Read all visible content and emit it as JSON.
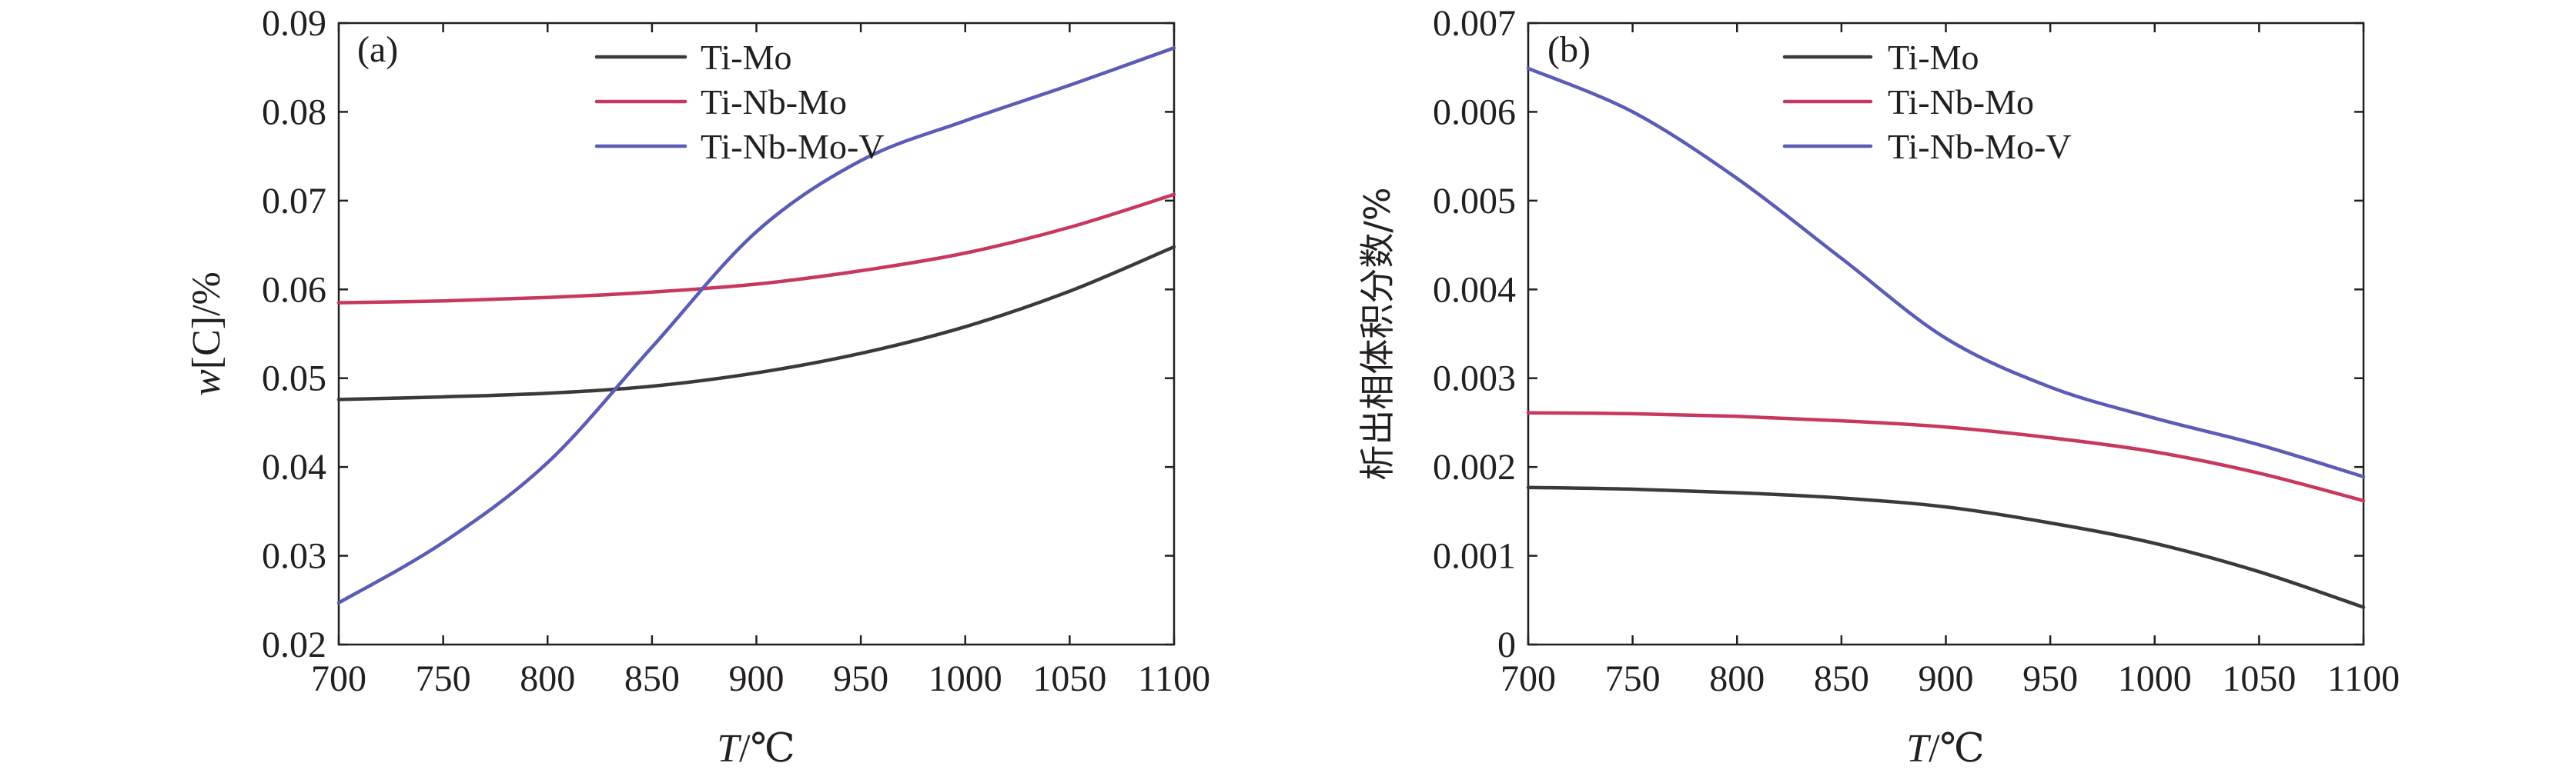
{
  "colors": {
    "Ti-Mo": "#3a3a3a",
    "Ti-Nb-Mo": "#c8385e",
    "Ti-Nb-Mo-V": "#5b5cb5",
    "axis": "#231f20"
  },
  "chart_data": [
    {
      "type": "line",
      "panel": "(a)",
      "xlabel_italic": "T",
      "xlabel_unit": "/℃",
      "ylabel_italic": "w",
      "ylabel_rest": "[C]/%",
      "xlim": [
        700,
        1100
      ],
      "ylim": [
        0.02,
        0.09
      ],
      "xticks": [
        700,
        750,
        800,
        850,
        900,
        950,
        1000,
        1050,
        1100
      ],
      "yticks": [
        0.02,
        0.03,
        0.04,
        0.05,
        0.06,
        0.07,
        0.08,
        0.09
      ],
      "ytick_labels": [
        "0.02",
        "0.03",
        "0.04",
        "0.05",
        "0.06",
        "0.07",
        "0.08",
        "0.09"
      ],
      "legend_position": "top-right",
      "grid": false,
      "x": [
        700,
        750,
        800,
        850,
        900,
        950,
        1000,
        1050,
        1100
      ],
      "series": [
        {
          "name": "Ti-Mo",
          "values": [
            0.0476,
            0.0479,
            0.0483,
            0.0491,
            0.0506,
            0.0528,
            0.0558,
            0.0598,
            0.0648
          ]
        },
        {
          "name": "Ti-Nb-Mo",
          "values": [
            0.0585,
            0.0587,
            0.0591,
            0.0597,
            0.0606,
            0.0621,
            0.0641,
            0.067,
            0.0707
          ]
        },
        {
          "name": "Ti-Nb-Mo-V",
          "values": [
            0.0247,
            0.0315,
            0.0405,
            0.0535,
            0.0665,
            0.0745,
            0.079,
            0.083,
            0.0872
          ]
        }
      ]
    },
    {
      "type": "line",
      "panel": "(b)",
      "xlabel_italic": "T",
      "xlabel_unit": "/℃",
      "ylabel": "析出相体积分数/%",
      "xlim": [
        700,
        1100
      ],
      "ylim": [
        0,
        0.007
      ],
      "xticks": [
        700,
        750,
        800,
        850,
        900,
        950,
        1000,
        1050,
        1100
      ],
      "yticks": [
        0,
        0.001,
        0.002,
        0.003,
        0.004,
        0.005,
        0.006,
        0.007
      ],
      "ytick_labels": [
        "0",
        "0.001",
        "0.002",
        "0.003",
        "0.004",
        "0.005",
        "0.006",
        "0.007"
      ],
      "legend_position": "top-right",
      "grid": false,
      "x": [
        700,
        750,
        800,
        850,
        900,
        950,
        1000,
        1050,
        1100
      ],
      "series": [
        {
          "name": "Ti-Mo",
          "values": [
            0.00177,
            0.00175,
            0.00171,
            0.00165,
            0.00155,
            0.00137,
            0.00114,
            0.00082,
            0.00042
          ]
        },
        {
          "name": "Ti-Nb-Mo",
          "values": [
            0.00261,
            0.0026,
            0.00257,
            0.00252,
            0.00245,
            0.00233,
            0.00217,
            0.00193,
            0.00162
          ]
        },
        {
          "name": "Ti-Nb-Mo-V",
          "values": [
            0.00649,
            0.006,
            0.00525,
            0.00435,
            0.00345,
            0.0029,
            0.00255,
            0.00225,
            0.00189
          ]
        }
      ]
    }
  ]
}
